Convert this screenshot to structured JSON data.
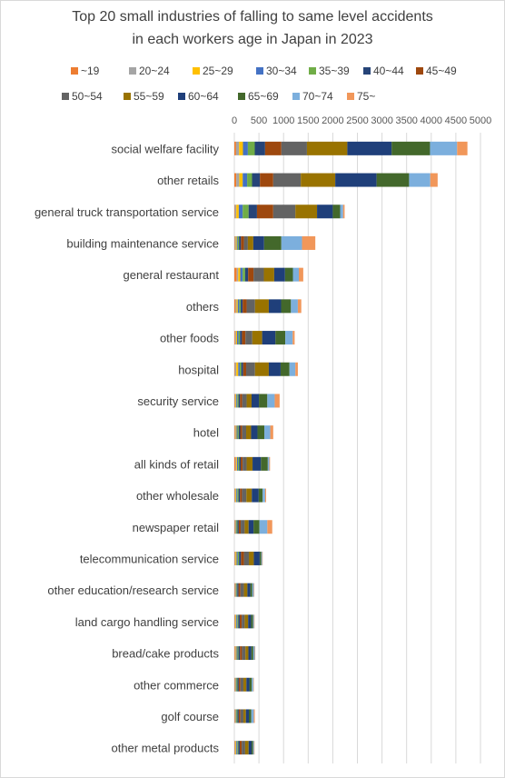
{
  "chart_data": {
    "type": "bar",
    "orientation": "horizontal",
    "stacked": true,
    "title": [
      "Top 20 small industries of falling to same level accidents",
      "in each workers age in Japan in 2023"
    ],
    "xlim": [
      0,
      5000
    ],
    "x_ticks": [
      "0",
      "500",
      "1000",
      "1500",
      "2000",
      "2500",
      "3000",
      "3500",
      "4000",
      "4500",
      "5000"
    ],
    "grid": true,
    "legend_position": "top",
    "categories": [
      "social welfare facility",
      "other retails",
      "general truck transportation service",
      "building maintenance service",
      "general restaurant",
      "others",
      "other foods",
      "hospital",
      "security service",
      "hotel",
      "all kinds of retail",
      "other wholesale",
      "newspaper retail",
      "telecommunication service",
      "other education/research service",
      "land cargo handling service",
      "bread/cake products",
      "other commerce",
      "golf course",
      "other metal products"
    ],
    "series": [
      {
        "name": "~19",
        "color": "#ed7d31",
        "values": [
          35,
          40,
          10,
          10,
          50,
          25,
          15,
          10,
          10,
          15,
          25,
          10,
          10,
          10,
          10,
          10,
          15,
          10,
          10,
          10
        ]
      },
      {
        "name": "20~24",
        "color": "#a5a5a5",
        "values": [
          60,
          60,
          30,
          20,
          30,
          20,
          20,
          30,
          15,
          15,
          15,
          15,
          10,
          15,
          10,
          15,
          15,
          10,
          10,
          15
        ]
      },
      {
        "name": "25~29",
        "color": "#ffc000",
        "values": [
          80,
          70,
          50,
          20,
          40,
          25,
          20,
          40,
          15,
          15,
          15,
          15,
          10,
          20,
          10,
          15,
          15,
          10,
          10,
          15
        ]
      },
      {
        "name": "30~34",
        "color": "#4472c4",
        "values": [
          100,
          90,
          80,
          20,
          50,
          30,
          30,
          30,
          20,
          20,
          20,
          20,
          15,
          25,
          15,
          20,
          20,
          15,
          15,
          20
        ]
      },
      {
        "name": "35~39",
        "color": "#70ad47",
        "values": [
          140,
          100,
          120,
          25,
          50,
          30,
          30,
          30,
          25,
          25,
          25,
          25,
          20,
          25,
          15,
          20,
          20,
          20,
          20,
          20
        ]
      },
      {
        "name": "40~44",
        "color": "#264478",
        "values": [
          210,
          160,
          170,
          40,
          60,
          40,
          40,
          40,
          30,
          30,
          30,
          30,
          25,
          40,
          25,
          30,
          30,
          25,
          25,
          30
        ]
      },
      {
        "name": "45~49",
        "color": "#9e480e",
        "values": [
          330,
          270,
          330,
          60,
          110,
          80,
          70,
          60,
          45,
          40,
          40,
          40,
          40,
          60,
          40,
          40,
          40,
          35,
          35,
          40
        ]
      },
      {
        "name": "50~54",
        "color": "#636363",
        "values": [
          520,
          560,
          450,
          80,
          210,
          170,
          140,
          180,
          90,
          80,
          80,
          90,
          80,
          100,
          70,
          60,
          70,
          60,
          60,
          70
        ]
      },
      {
        "name": "55~59",
        "color": "#997300",
        "values": [
          820,
          700,
          440,
          110,
          210,
          280,
          200,
          280,
          100,
          100,
          120,
          110,
          80,
          100,
          70,
          70,
          60,
          60,
          50,
          70
        ]
      },
      {
        "name": "60~64",
        "color": "#1f3f7a",
        "values": [
          900,
          840,
          320,
          220,
          220,
          250,
          270,
          240,
          150,
          130,
          170,
          140,
          100,
          120,
          60,
          60,
          60,
          60,
          60,
          60
        ]
      },
      {
        "name": "65~69",
        "color": "#43682b",
        "values": [
          780,
          660,
          150,
          350,
          160,
          200,
          200,
          180,
          170,
          140,
          140,
          80,
          120,
          30,
          40,
          40,
          40,
          50,
          50,
          30
        ]
      },
      {
        "name": "70~74",
        "color": "#7cafdd",
        "values": [
          550,
          430,
          60,
          420,
          120,
          140,
          150,
          120,
          150,
          120,
          30,
          50,
          160,
          20,
          30,
          20,
          30,
          30,
          50,
          20
        ]
      },
      {
        "name": "75~",
        "color": "#f1975a",
        "values": [
          210,
          150,
          30,
          270,
          90,
          70,
          40,
          50,
          100,
          60,
          15,
          20,
          100,
          10,
          10,
          10,
          10,
          10,
          20,
          10
        ]
      }
    ]
  }
}
